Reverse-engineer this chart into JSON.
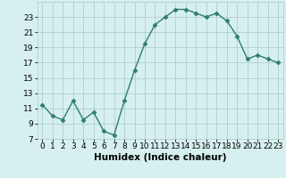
{
  "x": [
    0,
    1,
    2,
    3,
    4,
    5,
    6,
    7,
    8,
    9,
    10,
    11,
    12,
    13,
    14,
    15,
    16,
    17,
    18,
    19,
    20,
    21,
    22,
    23
  ],
  "y": [
    11.5,
    10.0,
    9.5,
    12.0,
    9.5,
    10.5,
    8.0,
    7.5,
    12.0,
    16.0,
    19.5,
    22.0,
    23.0,
    24.0,
    24.0,
    23.5,
    23.0,
    23.5,
    22.5,
    20.5,
    17.5,
    18.0,
    17.5,
    17.0
  ],
  "line_color": "#2e7d6e",
  "marker": "D",
  "marker_size": 2.5,
  "bg_color": "#d6f0ef",
  "grid_color": "#b0cece",
  "xlabel": "Humidex (Indice chaleur)",
  "xlim": [
    -0.5,
    23.5
  ],
  "ylim": [
    7,
    25
  ],
  "yticks": [
    7,
    9,
    11,
    13,
    15,
    17,
    19,
    21,
    23
  ],
  "xticks": [
    0,
    1,
    2,
    3,
    4,
    5,
    6,
    7,
    8,
    9,
    10,
    11,
    12,
    13,
    14,
    15,
    16,
    17,
    18,
    19,
    20,
    21,
    22,
    23
  ],
  "xtick_labels": [
    "0",
    "1",
    "2",
    "3",
    "4",
    "5",
    "6",
    "7",
    "8",
    "9",
    "10",
    "11",
    "12",
    "13",
    "14",
    "15",
    "16",
    "17",
    "18",
    "19",
    "20",
    "21",
    "22",
    "23"
  ],
  "tick_fontsize": 6.5,
  "xlabel_fontsize": 7.5
}
